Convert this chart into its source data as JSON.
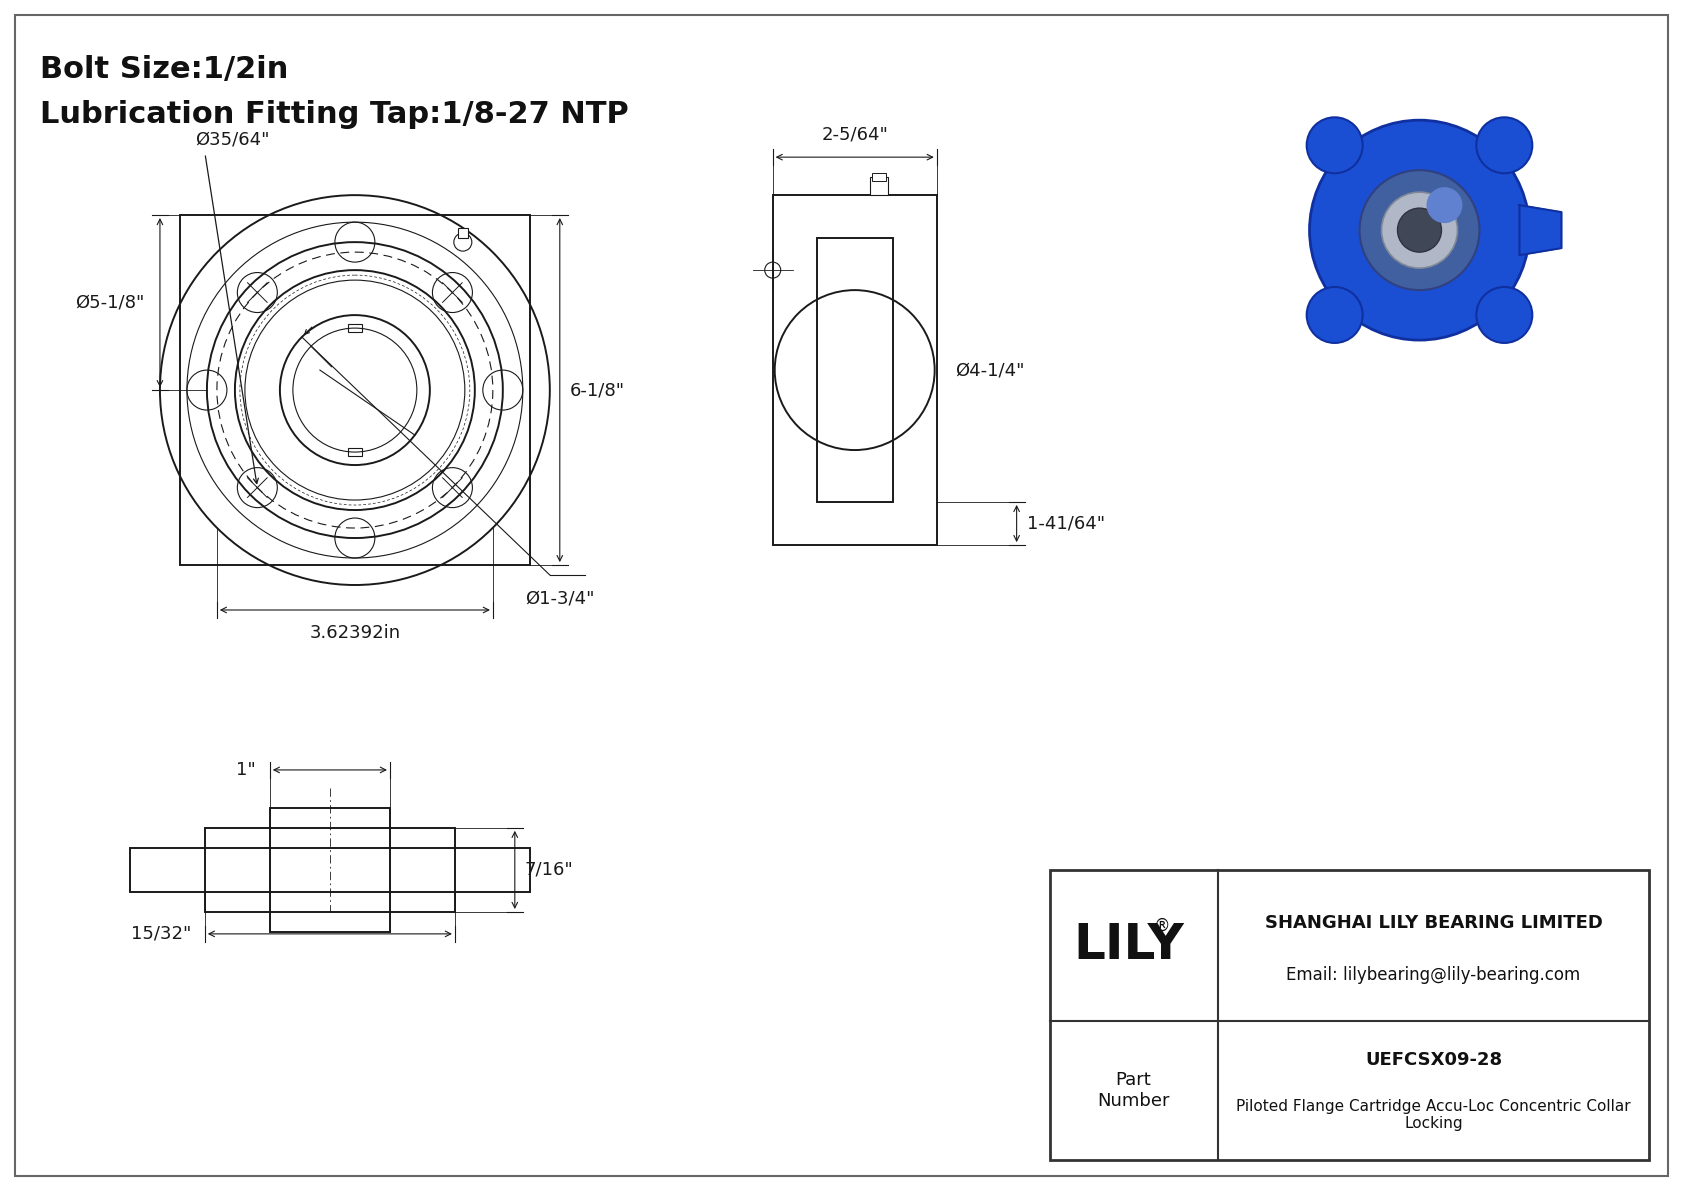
{
  "bg_color": "#ffffff",
  "line_color": "#1a1a1a",
  "title_line1": "Bolt Size:1/2in",
  "title_line2": "Lubrication Fitting Tap:1/8-27 NTP",
  "company": "SHANGHAI LILY BEARING LIMITED",
  "email": "Email: lilybearing@lily-bearing.com",
  "part_label": "Part\nNumber",
  "part_number": "UEFCSX09-28",
  "part_desc": "Piloted Flange Cartridge Accu-Loc Concentric Collar\nLocking",
  "lily_text": "LILY",
  "reg_mark": "®",
  "dims": {
    "bolt_hole_dia": "Ø35/64\"",
    "flange_od": "Ø5-1/8\"",
    "bore_dia": "Ø1-3/4\"",
    "bc_dia": "3.62392in",
    "overall_h": "6-1/8\"",
    "side_width": "2-5/64\"",
    "side_height": "1-41/64\"",
    "side_bore": "Ø4-1/4\"",
    "top_1": "1\"",
    "top_7_16": "7/16\"",
    "top_15_32": "15/32\""
  }
}
